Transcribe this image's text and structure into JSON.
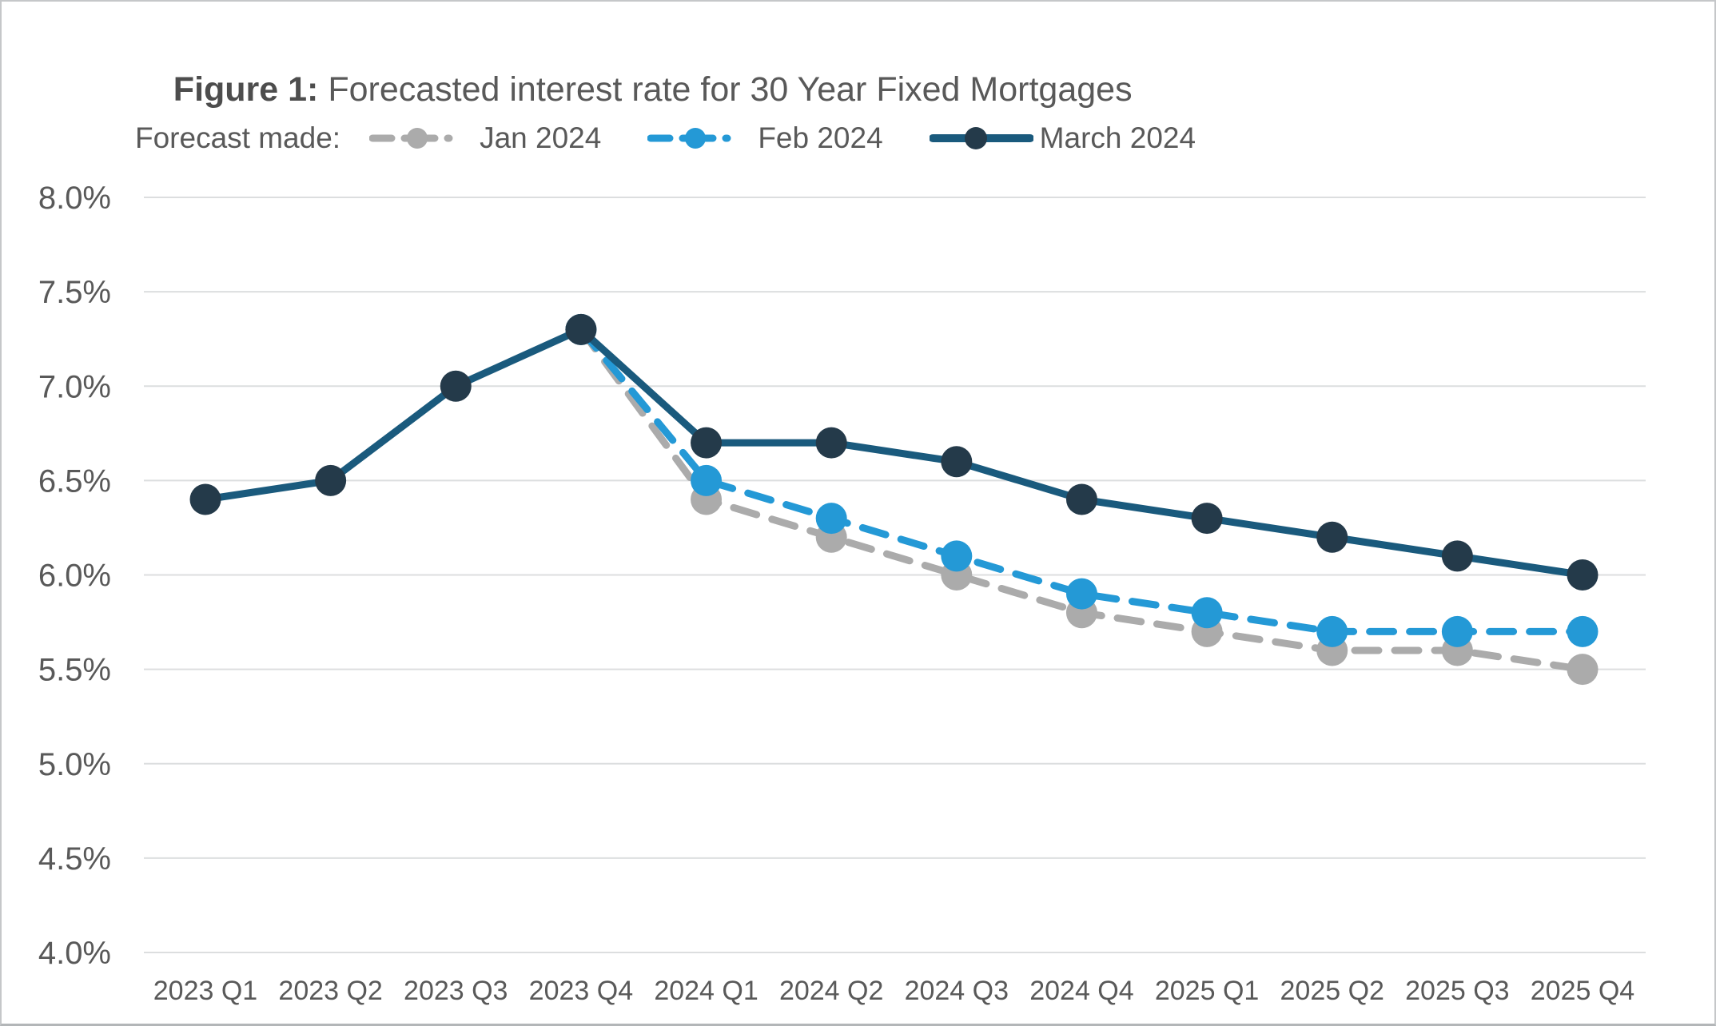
{
  "title": {
    "prefix": "Figure 1:",
    "rest": " Forecasted interest rate for 30 Year Fixed Mortgages"
  },
  "legend": {
    "title": "Forecast made:"
  },
  "colors": {
    "grid": "#dcdedf",
    "axis_text": "#595959",
    "background": "#ffffff"
  },
  "chart_data": {
    "type": "line",
    "title": "Figure 1: Forecasted interest rate for 30 Year Fixed Mortgages",
    "xlabel": "",
    "ylabel": "",
    "ylim": [
      4.0,
      8.0
    ],
    "y_tick_values": [
      8.0,
      7.5,
      7.0,
      6.5,
      6.0,
      5.5,
      5.0,
      4.5,
      4.0
    ],
    "y_ticks": [
      "8.0%",
      "7.5%",
      "7.0%",
      "6.5%",
      "6.0%",
      "5.5%",
      "5.0%",
      "4.5%",
      "4.0%"
    ],
    "grid": true,
    "legend_position": "top",
    "categories": [
      "2023 Q1",
      "2023 Q2",
      "2023 Q3",
      "2023 Q4",
      "2024 Q1",
      "2024 Q2",
      "2024 Q3",
      "2024 Q4",
      "2025 Q1",
      "2025 Q2",
      "2025 Q3",
      "2025 Q4"
    ],
    "series": [
      {
        "name": "Jan 2024",
        "style": "dashed",
        "line_color": "#ababab",
        "marker_color": "#ababab",
        "values": [
          null,
          null,
          null,
          7.3,
          6.4,
          6.2,
          6.0,
          5.8,
          5.7,
          5.6,
          5.6,
          5.5
        ]
      },
      {
        "name": "Feb 2024",
        "style": "dashed",
        "line_color": "#2499d6",
        "marker_color": "#2499d6",
        "values": [
          null,
          null,
          null,
          7.3,
          6.5,
          6.3,
          6.1,
          5.9,
          5.8,
          5.7,
          5.7,
          5.7
        ]
      },
      {
        "name": "March 2024",
        "style": "solid",
        "line_color": "#1a5a7d",
        "marker_color": "#243a4a",
        "values": [
          6.4,
          6.5,
          7.0,
          7.3,
          6.7,
          6.7,
          6.6,
          6.4,
          6.3,
          6.2,
          6.1,
          6.0
        ]
      }
    ]
  }
}
